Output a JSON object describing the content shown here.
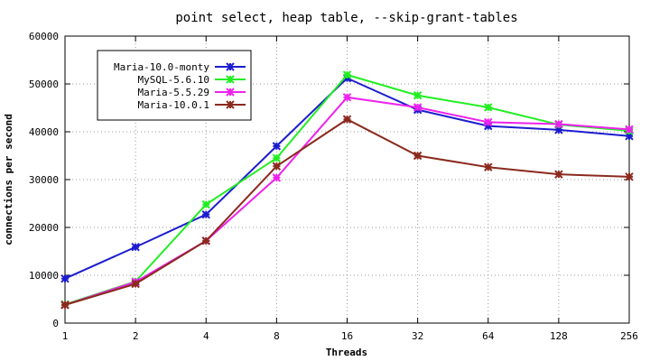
{
  "chart_data": {
    "type": "line",
    "title": "point select, heap table, --skip-grant-tables",
    "xlabel": "Threads",
    "ylabel": "connections per second",
    "x_scale": "log2",
    "categories": [
      "1",
      "2",
      "4",
      "8",
      "16",
      "32",
      "64",
      "128",
      "256"
    ],
    "ylim": [
      0,
      60000
    ],
    "yticks": [
      "0",
      "10000",
      "20000",
      "30000",
      "40000",
      "50000",
      "60000"
    ],
    "grid": true,
    "legend_position": "top-left",
    "series": [
      {
        "name": "Maria-10.0-monty",
        "color": "#1c1ccf",
        "values": [
          9300,
          15900,
          22700,
          37000,
          51200,
          44600,
          41200,
          40400,
          39100
        ]
      },
      {
        "name": "MySQL-5.6.10",
        "color": "#22ee22",
        "values": [
          3900,
          8700,
          24800,
          34500,
          51900,
          47600,
          45100,
          41500,
          40200
        ]
      },
      {
        "name": "Maria-5.5.29",
        "color": "#ee22ee",
        "values": [
          3800,
          8600,
          17200,
          30400,
          47200,
          45100,
          42000,
          41600,
          40500
        ]
      },
      {
        "name": "Maria-10.0.1",
        "color": "#8b2a1e",
        "values": [
          3800,
          8200,
          17200,
          32800,
          42600,
          35000,
          32600,
          31100,
          30600
        ]
      }
    ]
  }
}
